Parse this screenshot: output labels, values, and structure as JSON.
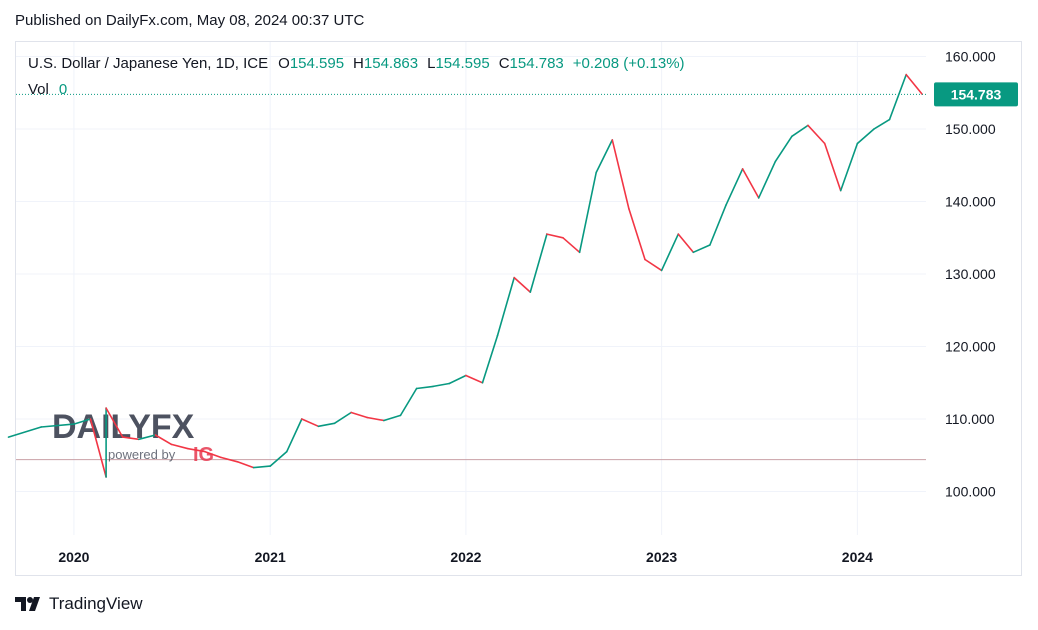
{
  "header": {
    "published": "Published on DailyFx.com, May 08, 2024 00:37 UTC"
  },
  "legend": {
    "symbol": "U.S. Dollar / Japanese Yen, 1D, ICE",
    "open_label": "O",
    "open": "154.595",
    "high_label": "H",
    "high": "154.863",
    "low_label": "L",
    "low": "154.595",
    "close_label": "C",
    "close": "154.783",
    "change": "+0.208 (+0.13%)",
    "vol_label": "Vol",
    "vol_value": "0"
  },
  "watermark": {
    "brand": "DAILYFX",
    "sub": "powered by",
    "ig": "IG"
  },
  "footer": {
    "brand": "TradingView"
  },
  "colors": {
    "up": "#089981",
    "down": "#f23645",
    "accent": "#089981",
    "grid": "#f0f3fa"
  },
  "chart_data": {
    "type": "line",
    "ylim": [
      94,
      162
    ],
    "y_ticks": [
      "100.000",
      "110.000",
      "120.000",
      "130.000",
      "140.000",
      "150.000",
      "160.000"
    ],
    "x_ticks": [
      "2020",
      "2021",
      "2022",
      "2023",
      "2024"
    ],
    "last_price_label": "154.783",
    "last_price": 154.783,
    "reference_level": 104.4,
    "series": [
      {
        "x": [
          "2019-09",
          "2019-11",
          "2020-01",
          "2020-02",
          "2020-03",
          "2020-03",
          "2020-04",
          "2020-05",
          "2020-06",
          "2020-07",
          "2020-08",
          "2020-09",
          "2020-10",
          "2020-11",
          "2020-12",
          "2021-01",
          "2021-02",
          "2021-03",
          "2021-04",
          "2021-05",
          "2021-06",
          "2021-07",
          "2021-08",
          "2021-09",
          "2021-10",
          "2021-11",
          "2021-12",
          "2022-01",
          "2022-02",
          "2022-03",
          "2022-04",
          "2022-05",
          "2022-06",
          "2022-07",
          "2022-08",
          "2022-09",
          "2022-10",
          "2022-11",
          "2022-12",
          "2023-01",
          "2023-02",
          "2023-03",
          "2023-04",
          "2023-05",
          "2023-06",
          "2023-07",
          "2023-08",
          "2023-09",
          "2023-10",
          "2023-11",
          "2023-12",
          "2024-01",
          "2024-02",
          "2024-03",
          "2024-04",
          "2024-05"
        ],
        "values": [
          107.5,
          108.9,
          109.3,
          110.0,
          102.0,
          111.5,
          107.5,
          107.2,
          107.8,
          106.5,
          105.9,
          105.5,
          104.7,
          104.1,
          103.3,
          103.5,
          105.5,
          110.0,
          109.0,
          109.4,
          110.9,
          110.2,
          109.8,
          110.5,
          114.2,
          114.5,
          114.9,
          116.0,
          115.0,
          121.5,
          129.5,
          127.5,
          135.5,
          135.0,
          133.0,
          144.0,
          148.5,
          139.0,
          132.0,
          130.5,
          135.5,
          133.0,
          134.0,
          139.5,
          144.5,
          140.5,
          145.5,
          149.0,
          150.5,
          148.0,
          141.5,
          148.0,
          150.0,
          151.3,
          157.5,
          154.8
        ]
      }
    ]
  }
}
